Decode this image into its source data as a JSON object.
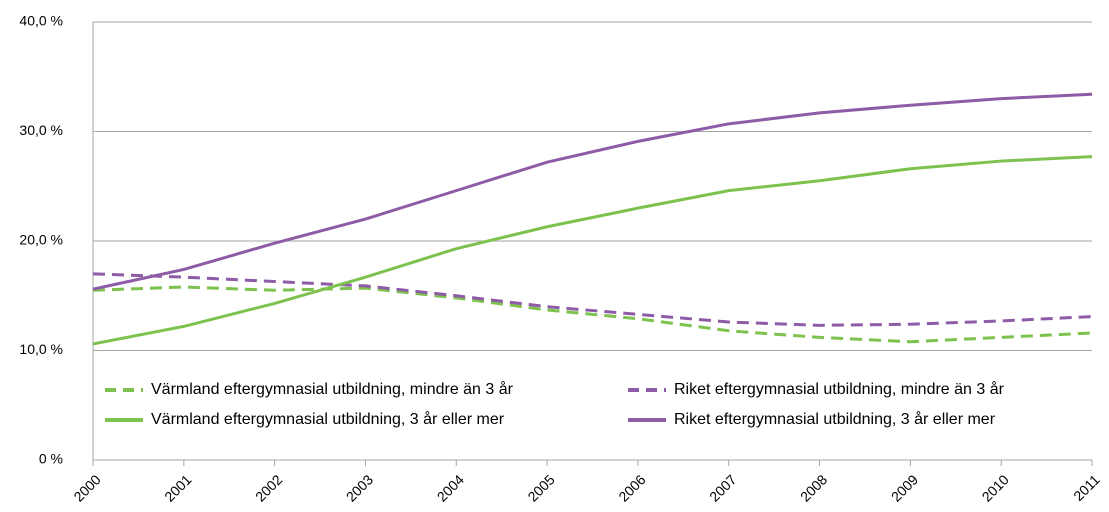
{
  "chart_data": {
    "type": "line",
    "categories": [
      "2000",
      "2001",
      "2002",
      "2003",
      "2004",
      "2005",
      "2006",
      "2007",
      "2008",
      "2009",
      "2010",
      "2011"
    ],
    "series": [
      {
        "name": "Värmland eftergymnasial utbildning, mindre än 3 år",
        "color": "#7dc24e",
        "line_style": "dashed",
        "values": [
          15.5,
          15.8,
          15.5,
          15.7,
          14.8,
          13.7,
          12.9,
          11.8,
          11.2,
          10.8,
          11.2,
          11.6
        ]
      },
      {
        "name": "Riket eftergymnasial utbildning, mindre än 3 år",
        "color": "#8e5ba6",
        "line_style": "dashed",
        "values": [
          17.0,
          16.7,
          16.3,
          15.9,
          15.0,
          14.0,
          13.3,
          12.6,
          12.3,
          12.4,
          12.7,
          13.1
        ]
      },
      {
        "name": "Värmland eftergymnasial utbildning, 3 år eller mer",
        "color": "#7dc24e",
        "line_style": "solid",
        "values": [
          10.6,
          12.2,
          14.3,
          16.7,
          19.3,
          21.3,
          23.0,
          24.6,
          25.5,
          26.6,
          27.3,
          27.7
        ]
      },
      {
        "name": "Riket eftergymnasial utbildning, 3 år eller mer",
        "color": "#8e5ba6",
        "line_style": "solid",
        "values": [
          15.6,
          17.4,
          19.8,
          22.0,
          24.6,
          27.2,
          29.1,
          30.7,
          31.7,
          32.4,
          33.0,
          33.4
        ]
      }
    ],
    "ylim": [
      0,
      40
    ],
    "yticks": [
      {
        "value": 0,
        "label": "0 %"
      },
      {
        "value": 10,
        "label": "10,0 %"
      },
      {
        "value": 20,
        "label": "20,0 %"
      },
      {
        "value": 30,
        "label": "30,0 %"
      },
      {
        "value": 40,
        "label": "40,0 %"
      }
    ],
    "grid": true,
    "legend": "inside-bottom"
  }
}
